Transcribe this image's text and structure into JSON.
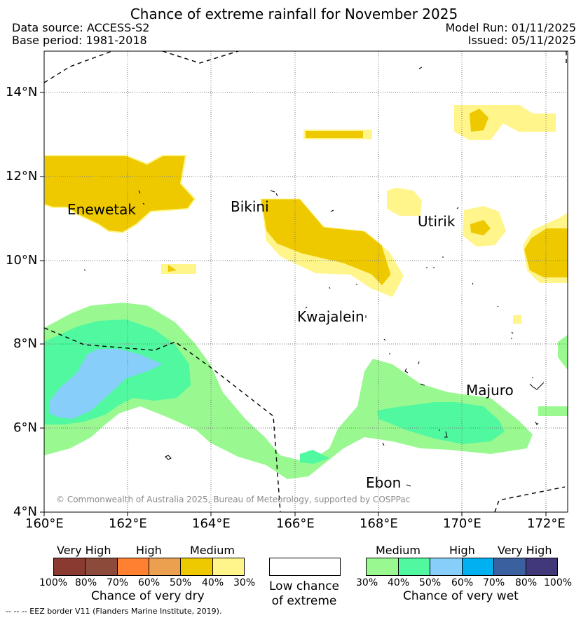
{
  "title": "Chance of extreme rainfall for November 2025",
  "meta": {
    "data_source": "Data source: ACCESS-S2",
    "base_period": "Base period: 1981-2018",
    "model_run": "Model Run: 01/11/2025",
    "issued": "Issued: 05/11/2025"
  },
  "axes": {
    "lat_ticks": [
      "14°N",
      "12°N",
      "10°N",
      "8°N",
      "6°N",
      "4°N"
    ],
    "lon_ticks": [
      "160°E",
      "162°E",
      "164°E",
      "166°E",
      "168°E",
      "170°E",
      "172°E"
    ]
  },
  "places": {
    "enewetak": "Enewetak",
    "bikini": "Bikini",
    "utirik": "Utirik",
    "kwajalein": "Kwajalein",
    "majuro": "Majuro",
    "ebon": "Ebon"
  },
  "copyright": "© Commonwealth of Australia 2025, Bureau of Meteorology, supported by COSPPac",
  "legend": {
    "dry": {
      "categories": [
        "Very High",
        "High",
        "Medium"
      ],
      "colors": [
        "#8b3a32",
        "#8b4a3a",
        "#ff8030",
        "#eba050",
        "#eec900",
        "#fff58a"
      ],
      "ticks": [
        "100%",
        "80%",
        "70%",
        "60%",
        "50%",
        "40%",
        "30%"
      ],
      "title": "Chance of very dry"
    },
    "low": {
      "label_line1": "Low chance",
      "label_line2": "of extreme"
    },
    "wet": {
      "categories": [
        "Medium",
        "High",
        "Very High"
      ],
      "colors": [
        "#99f990",
        "#50f8a0",
        "#87cefa",
        "#00b0f0",
        "#3a60a0",
        "#403878"
      ],
      "ticks": [
        "30%",
        "40%",
        "50%",
        "60%",
        "70%",
        "80%",
        "100%"
      ],
      "title": "Chance of very wet"
    }
  },
  "eez_note": "-- -- -- EEZ border V11 (Flanders Marine Institute, 2019)."
}
